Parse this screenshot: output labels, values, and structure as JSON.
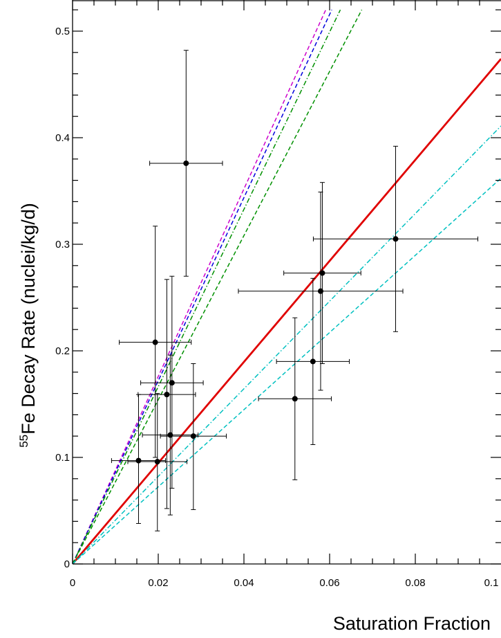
{
  "chart_data": {
    "type": "scatter",
    "title": "",
    "xlabel": "Saturation Fraction",
    "ylabel_sup": "55",
    "ylabel": "Fe Decay Rate (nuclei/kg/d)",
    "xlim": [
      0,
      0.1
    ],
    "ylim": [
      0,
      0.52
    ],
    "grid": false,
    "x_ticks": [
      0,
      0.02,
      0.04,
      0.06,
      0.08,
      0.1
    ],
    "x_tick_labels": [
      "0",
      "0.02",
      "0.04",
      "0.06",
      "0.08",
      "0.1"
    ],
    "y_ticks": [
      0,
      0.1,
      0.2,
      0.3,
      0.4,
      0.5
    ],
    "y_tick_labels": [
      "0",
      "0.1",
      "0.2",
      "0.3",
      "0.4",
      "0.5"
    ],
    "points": [
      {
        "x": 0.0265,
        "y": 0.376,
        "xerr": 0.0085,
        "ylo": 0.27,
        "yhi": 0.482
      },
      {
        "x": 0.0193,
        "y": 0.208,
        "xerr": 0.0084,
        "ylo": 0.1,
        "yhi": 0.317
      },
      {
        "x": 0.0232,
        "y": 0.17,
        "xerr": 0.0073,
        "ylo": 0.071,
        "yhi": 0.27
      },
      {
        "x": 0.022,
        "y": 0.159,
        "xerr": 0.0067,
        "ylo": 0.052,
        "yhi": 0.267
      },
      {
        "x": 0.0228,
        "y": 0.121,
        "xerr": 0.0065,
        "ylo": 0.046,
        "yhi": 0.196
      },
      {
        "x": 0.0282,
        "y": 0.12,
        "xerr": 0.0077,
        "ylo": 0.051,
        "yhi": 0.188
      },
      {
        "x": 0.0154,
        "y": 0.097,
        "xerr": 0.0063,
        "ylo": 0.038,
        "yhi": 0.159
      },
      {
        "x": 0.0198,
        "y": 0.096,
        "xerr": 0.0069,
        "ylo": 0.031,
        "yhi": 0.16
      },
      {
        "x": 0.0519,
        "y": 0.155,
        "xerr": 0.0085,
        "ylo": 0.079,
        "yhi": 0.231
      },
      {
        "x": 0.0561,
        "y": 0.19,
        "xerr": 0.0085,
        "ylo": 0.112,
        "yhi": 0.268
      },
      {
        "x": 0.0579,
        "y": 0.256,
        "xerr": 0.0192,
        "ylo": 0.163,
        "yhi": 0.349
      },
      {
        "x": 0.0583,
        "y": 0.273,
        "xerr": 0.009,
        "ylo": 0.188,
        "yhi": 0.358
      },
      {
        "x": 0.0754,
        "y": 0.305,
        "xerr": 0.0192,
        "ylo": 0.218,
        "yhi": 0.392
      }
    ],
    "lines": [
      {
        "color": "#e00000",
        "dash": "solid",
        "width": 2.8,
        "x0": 0,
        "y0": 0,
        "x1": 0.1,
        "y1": 0.474
      },
      {
        "color": "#cc00cc",
        "dash": "dashed",
        "width": 1.5,
        "x0": 0,
        "y0": 0,
        "x1": 0.0591,
        "y1": 0.52
      },
      {
        "color": "#0000dd",
        "dash": "dashed",
        "width": 1.5,
        "x0": 0,
        "y0": 0,
        "x1": 0.0605,
        "y1": 0.52
      },
      {
        "color": "#009000",
        "dash": "dashdot",
        "width": 1.5,
        "x0": 0,
        "y0": 0,
        "x1": 0.0625,
        "y1": 0.52
      },
      {
        "color": "#009000",
        "dash": "dashed",
        "width": 1.5,
        "x0": 0,
        "y0": 0,
        "x1": 0.0675,
        "y1": 0.52
      },
      {
        "color": "#00c0c0",
        "dash": "dashdot",
        "width": 1.5,
        "x0": 0,
        "y0": 0,
        "x1": 0.1,
        "y1": 0.411
      },
      {
        "color": "#00c0c0",
        "dash": "dashed",
        "width": 1.5,
        "x0": 0,
        "y0": 0,
        "x1": 0.1,
        "y1": 0.362
      }
    ]
  }
}
